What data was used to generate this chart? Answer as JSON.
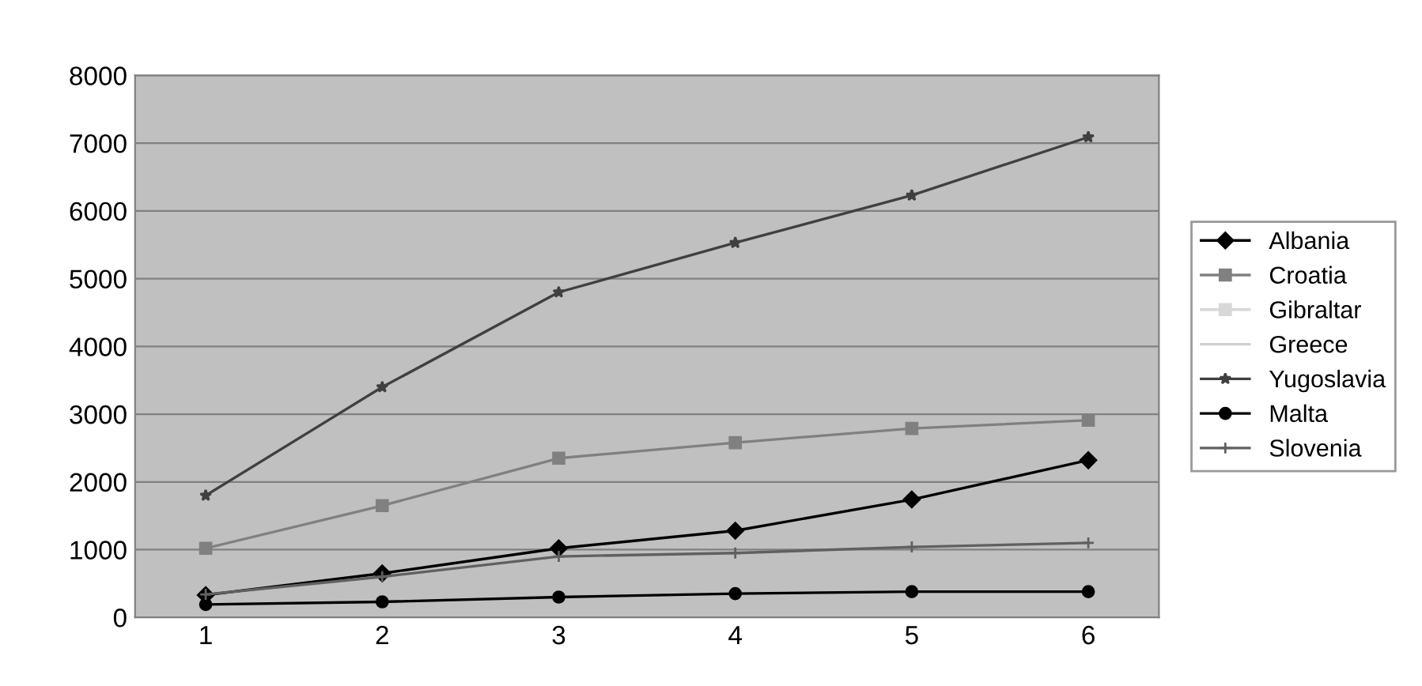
{
  "chart_data": {
    "type": "line",
    "categories": [
      "1",
      "2",
      "3",
      "4",
      "5",
      "6"
    ],
    "series": [
      {
        "name": "Albania",
        "color": "#000000",
        "marker": "diamond",
        "values": [
          330,
          650,
          1020,
          1280,
          1740,
          2320
        ]
      },
      {
        "name": "Croatia",
        "color": "#808080",
        "marker": "square",
        "values": [
          1020,
          1650,
          2350,
          2580,
          2790,
          2910
        ]
      },
      {
        "name": "Gibraltar",
        "color": "#d8d8d8",
        "marker": "square",
        "values": [
          null,
          null,
          null,
          null,
          null,
          null
        ]
      },
      {
        "name": "Greece",
        "color": "#d0d0d0",
        "marker": "none",
        "values": [
          null,
          null,
          null,
          null,
          null,
          null
        ]
      },
      {
        "name": "Yugoslavia",
        "color": "#404040",
        "marker": "star",
        "values": [
          1800,
          3400,
          4800,
          5530,
          6230,
          7090
        ]
      },
      {
        "name": "Malta",
        "color": "#000000",
        "marker": "circle",
        "values": [
          190,
          230,
          300,
          350,
          380,
          380
        ]
      },
      {
        "name": "Slovenia",
        "color": "#606060",
        "marker": "cross",
        "values": [
          340,
          600,
          900,
          950,
          1040,
          1100
        ]
      }
    ],
    "ylim": [
      0,
      8000
    ],
    "yticks": [
      0,
      1000,
      2000,
      3000,
      4000,
      5000,
      6000,
      7000,
      8000
    ],
    "grid": "y",
    "legend": "right"
  }
}
